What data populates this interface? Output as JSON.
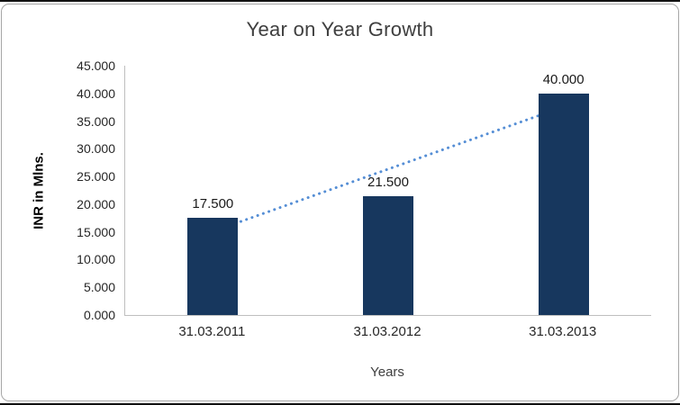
{
  "chart_data": {
    "type": "bar",
    "title": "Year on Year Growth",
    "categories": [
      "31.03.2011",
      "31.03.2012",
      "31.03.2013"
    ],
    "values": [
      17.5,
      21.5,
      40
    ],
    "data_labels": [
      "17.500",
      "21.500",
      "40.000"
    ],
    "xlabel": "Years",
    "ylabel": "INR in Mlns.",
    "ylim": [
      0,
      45
    ],
    "ytick_step": 5,
    "ytick_labels": [
      "0.000",
      "5.000",
      "10.000",
      "15.000",
      "20.000",
      "25.000",
      "30.000",
      "35.000",
      "40.000",
      "45.000"
    ],
    "grid": "off",
    "legend": "none",
    "bar_color": "#17375E",
    "trendline": {
      "type": "linear",
      "style": "dotted",
      "color": "#558ED5"
    }
  }
}
